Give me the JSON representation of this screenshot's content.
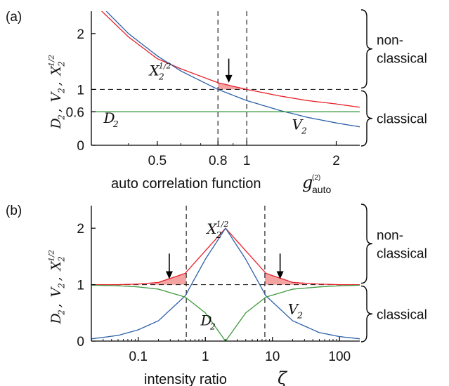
{
  "chart_data": [
    {
      "type": "line",
      "panel_label": "(a)",
      "xscale": "log",
      "xlim": [
        0.3,
        2.4
      ],
      "ylim": [
        0,
        2.4
      ],
      "xticks": [
        0.5,
        0.8,
        1,
        2
      ],
      "xtick_labels": [
        "0.5",
        "0.8",
        "1",
        "2"
      ],
      "yticks": [
        0,
        0.6,
        1,
        2
      ],
      "ytick_labels": [
        "0",
        "0.6",
        "1",
        "2"
      ],
      "xlabel": "auto correlation function",
      "xlabel_symbol": "g",
      "xlabel_sup": "(2)",
      "xlabel_sub": "auto",
      "ylabel": "D₂, V₂, X₂^{1/2}",
      "series": [
        {
          "name": "X₂^{1/2}",
          "color": "#e8202a",
          "x": [
            0.3,
            0.4,
            0.5,
            0.6,
            0.8,
            1.0,
            1.3,
            1.6,
            2.0,
            2.4
          ],
          "y": [
            2.58,
            1.94,
            1.55,
            1.37,
            1.12,
            1.0,
            0.88,
            0.8,
            0.74,
            0.68
          ]
        },
        {
          "name": "V₂",
          "color": "#2b5fa8",
          "x": [
            0.3,
            0.4,
            0.5,
            0.6,
            0.8,
            1.0,
            1.3,
            1.6,
            2.0,
            2.4
          ],
          "y": [
            2.67,
            2.0,
            1.6,
            1.33,
            1.0,
            0.8,
            0.62,
            0.5,
            0.4,
            0.33
          ]
        },
        {
          "name": "D₂",
          "color": "#3c9a3c",
          "x": [
            0.3,
            2.4
          ],
          "y": [
            0.6,
            0.6
          ]
        }
      ],
      "reference_lines": {
        "y": [
          1
        ],
        "x": [
          0.8,
          1
        ]
      },
      "shaded_region": {
        "color": "#f4a3a3",
        "x_range": [
          0.8,
          1.0
        ]
      },
      "annotations": [
        {
          "text": "X₂^{1/2}",
          "x": 0.47,
          "y": 1.25
        },
        {
          "text": "D₂",
          "x": 0.33,
          "y": 0.4
        },
        {
          "text": "V₂",
          "x": 1.42,
          "y": 0.28
        },
        {
          "type": "arrow",
          "x": 0.87,
          "y_from": 1.55,
          "y_to": 1.12
        }
      ],
      "brackets": [
        {
          "label_lines": [
            "non-",
            "classical"
          ],
          "y_range": [
            1,
            2.4
          ]
        },
        {
          "label_lines": [
            "classical"
          ],
          "y_range": [
            0,
            1
          ]
        }
      ]
    },
    {
      "type": "line",
      "panel_label": "(b)",
      "xscale": "log",
      "xlim": [
        0.02,
        200
      ],
      "ylim": [
        0,
        2.4
      ],
      "xticks": [
        0.1,
        1,
        10,
        100
      ],
      "xtick_labels": [
        "0.1",
        "1",
        "10",
        "100"
      ],
      "yticks": [
        0,
        1,
        2
      ],
      "ytick_labels": [
        "0",
        "1",
        "2"
      ],
      "xlabel": "intensity ratio",
      "xlabel_symbol": "ζ",
      "ylabel": "D₂, V₂, X₂^{1/2}",
      "series": [
        {
          "name": "X₂^{1/2}",
          "color": "#e8202a",
          "x": [
            0.02,
            0.05,
            0.1,
            0.2,
            0.5,
            1,
            2,
            4,
            8,
            20,
            50,
            100,
            200
          ],
          "y": [
            1.0,
            1.0,
            1.01,
            1.04,
            1.2,
            1.6,
            2.0,
            1.6,
            1.2,
            1.04,
            1.01,
            1.0,
            1.0
          ]
        },
        {
          "name": "V₂",
          "color": "#2b5fa8",
          "x": [
            0.02,
            0.05,
            0.1,
            0.2,
            0.5,
            1,
            2,
            4,
            8,
            20,
            50,
            100,
            200
          ],
          "y": [
            0.04,
            0.1,
            0.2,
            0.36,
            0.8,
            1.45,
            2.0,
            1.45,
            0.8,
            0.36,
            0.15,
            0.08,
            0.04
          ]
        },
        {
          "name": "D₂",
          "color": "#3c9a3c",
          "x": [
            0.02,
            0.05,
            0.1,
            0.2,
            0.5,
            1,
            2,
            4,
            8,
            20,
            50,
            100,
            200
          ],
          "y": [
            0.99,
            0.98,
            0.96,
            0.92,
            0.78,
            0.5,
            0.0,
            0.5,
            0.78,
            0.92,
            0.96,
            0.98,
            0.99
          ]
        }
      ],
      "reference_lines": {
        "y": [
          1
        ],
        "x": [
          0.52,
          7.7
        ]
      },
      "shaded_region": {
        "color": "#f4a3a3",
        "x_ranges": [
          [
            0.15,
            0.52
          ],
          [
            7.7,
            30
          ]
        ]
      },
      "annotations": [
        {
          "text": "X₂^{1/2}",
          "x": 1.05,
          "y": 1.9
        },
        {
          "text": "D₂",
          "x": 0.85,
          "y": 0.28
        },
        {
          "text": "V₂",
          "x": 17,
          "y": 0.48
        },
        {
          "type": "arrow",
          "x": 0.29,
          "y_from": 1.55,
          "y_to": 1.1
        },
        {
          "type": "arrow",
          "x": 13,
          "y_from": 1.55,
          "y_to": 1.1
        }
      ],
      "brackets": [
        {
          "label_lines": [
            "non-",
            "classical"
          ],
          "y_range": [
            1,
            2.4
          ]
        },
        {
          "label_lines": [
            "classical"
          ],
          "y_range": [
            0,
            1
          ]
        }
      ]
    }
  ]
}
